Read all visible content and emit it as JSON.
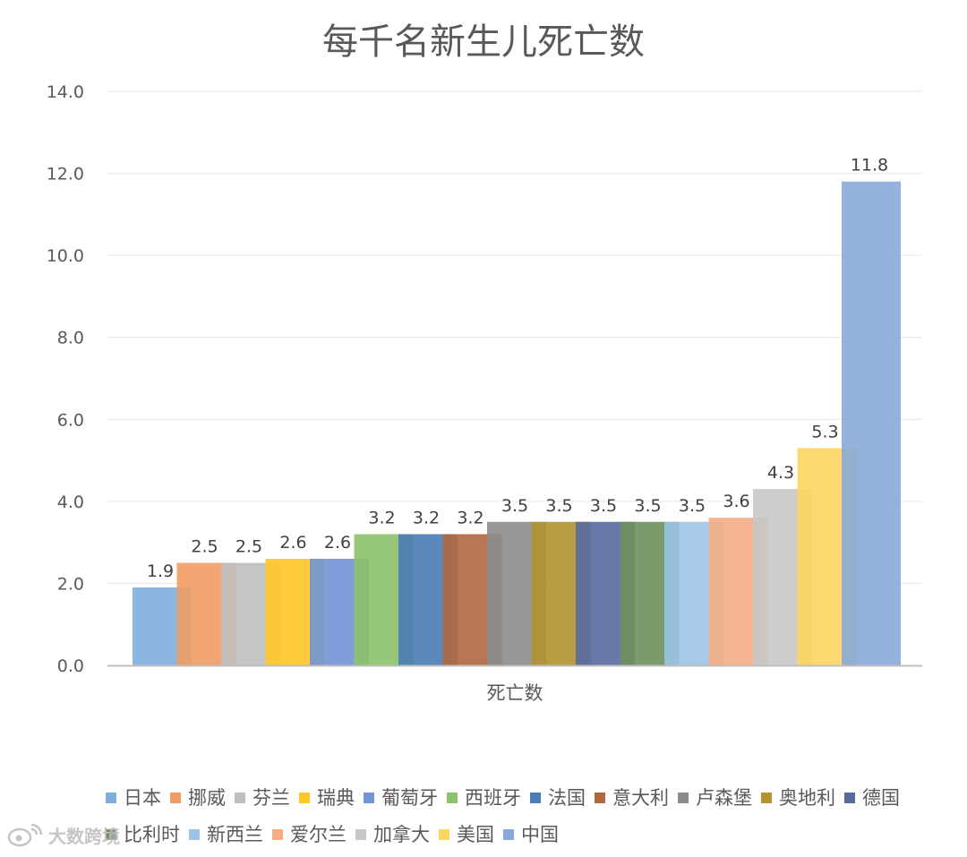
{
  "chart_data": {
    "type": "bar",
    "title": "每千名新生儿死亡数",
    "xlabel": "死亡数",
    "ylabel": "",
    "ylim": [
      0,
      14
    ],
    "yticks": [
      "0.0",
      "2.0",
      "4.0",
      "6.0",
      "8.0",
      "10.0",
      "12.0",
      "14.0"
    ],
    "grid": true,
    "legend_position": "bottom",
    "categories": [
      "死亡数"
    ],
    "series": [
      {
        "name": "日本",
        "values": [
          1.9
        ],
        "label": "1.9",
        "color": "#7FAEDC"
      },
      {
        "name": "挪威",
        "values": [
          2.5
        ],
        "label": "2.5",
        "color": "#F09C64"
      },
      {
        "name": "芬兰",
        "values": [
          2.5
        ],
        "label": "2.5",
        "color": "#BFBFBF"
      },
      {
        "name": "瑞典",
        "values": [
          2.6
        ],
        "label": "2.6",
        "color": "#FFC726"
      },
      {
        "name": "葡萄牙",
        "values": [
          2.6
        ],
        "label": "2.6",
        "color": "#7295D6"
      },
      {
        "name": "西班牙",
        "values": [
          3.2
        ],
        "label": "3.2",
        "color": "#8CC26C"
      },
      {
        "name": "法国",
        "values": [
          3.2
        ],
        "label": "3.2",
        "color": "#4A7CB5"
      },
      {
        "name": "意大利",
        "values": [
          3.2
        ],
        "label": "3.2",
        "color": "#B0683F"
      },
      {
        "name": "卢森堡",
        "values": [
          3.5
        ],
        "label": "3.5",
        "color": "#8C8C8C"
      },
      {
        "name": "奥地利",
        "values": [
          3.5
        ],
        "label": "3.5",
        "color": "#B39431"
      },
      {
        "name": "德国",
        "values": [
          3.5
        ],
        "label": "3.5",
        "color": "#566A9E"
      },
      {
        "name": "比利时",
        "values": [
          3.5
        ],
        "label": "3.5",
        "color": "#6E8F5C"
      },
      {
        "name": "新西兰",
        "values": [
          3.5
        ],
        "label": "3.5",
        "color": "#9CC4E6"
      },
      {
        "name": "爱尔兰",
        "values": [
          3.6
        ],
        "label": "3.6",
        "color": "#F4AD84"
      },
      {
        "name": "加拿大",
        "values": [
          4.3
        ],
        "label": "4.3",
        "color": "#C8C8C8"
      },
      {
        "name": "美国",
        "values": [
          5.3
        ],
        "label": "5.3",
        "color": "#FDD661"
      },
      {
        "name": "中国",
        "values": [
          11.8
        ],
        "label": "11.8",
        "color": "#8AA8DA"
      }
    ]
  },
  "watermark": {
    "text": "大数跨境",
    "icon": "weibo-logo-icon"
  }
}
